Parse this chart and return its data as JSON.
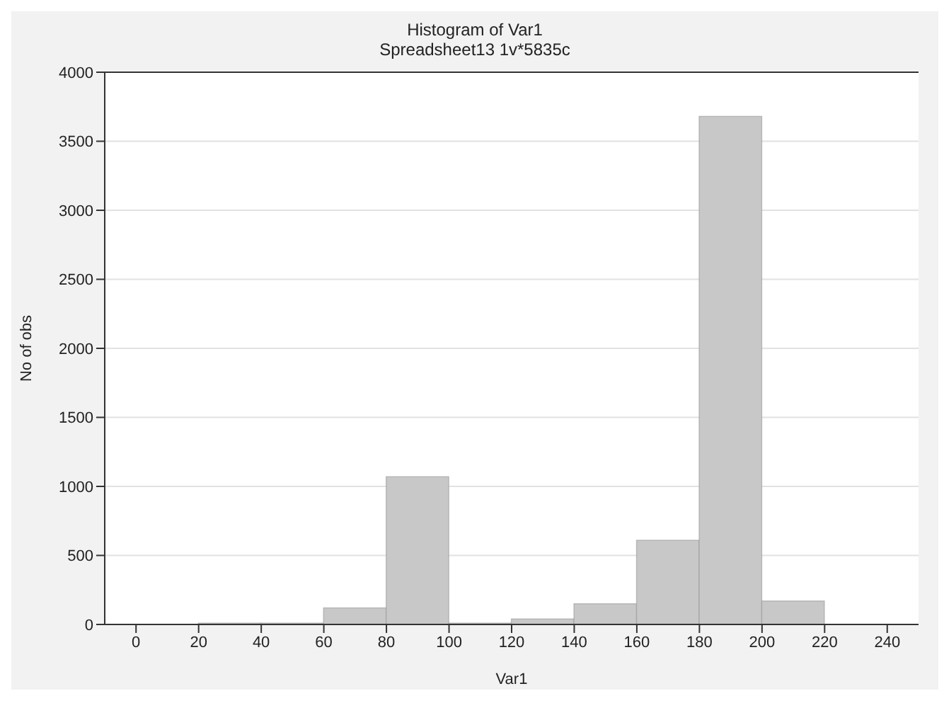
{
  "chart_data": {
    "type": "histogram",
    "title": "Histogram of Var1",
    "subtitle": "Spreadsheet13 1v*5835c",
    "xlabel": "Var1",
    "ylabel": "No of obs",
    "bins": [
      20,
      40,
      60,
      80,
      100,
      120,
      140,
      160,
      180,
      200,
      220
    ],
    "values": [
      10,
      10,
      120,
      1070,
      10,
      40,
      150,
      610,
      3680,
      170
    ],
    "color": "#c8c8c8",
    "xlim": [
      -10,
      250
    ],
    "xticks": [
      0,
      20,
      40,
      60,
      80,
      100,
      120,
      140,
      160,
      180,
      200,
      220,
      240
    ],
    "ylim": [
      0,
      4000
    ],
    "yticks": [
      0,
      500,
      1000,
      1500,
      2000,
      2500,
      3000,
      3500,
      4000
    ],
    "grid": "y",
    "legend": false
  }
}
